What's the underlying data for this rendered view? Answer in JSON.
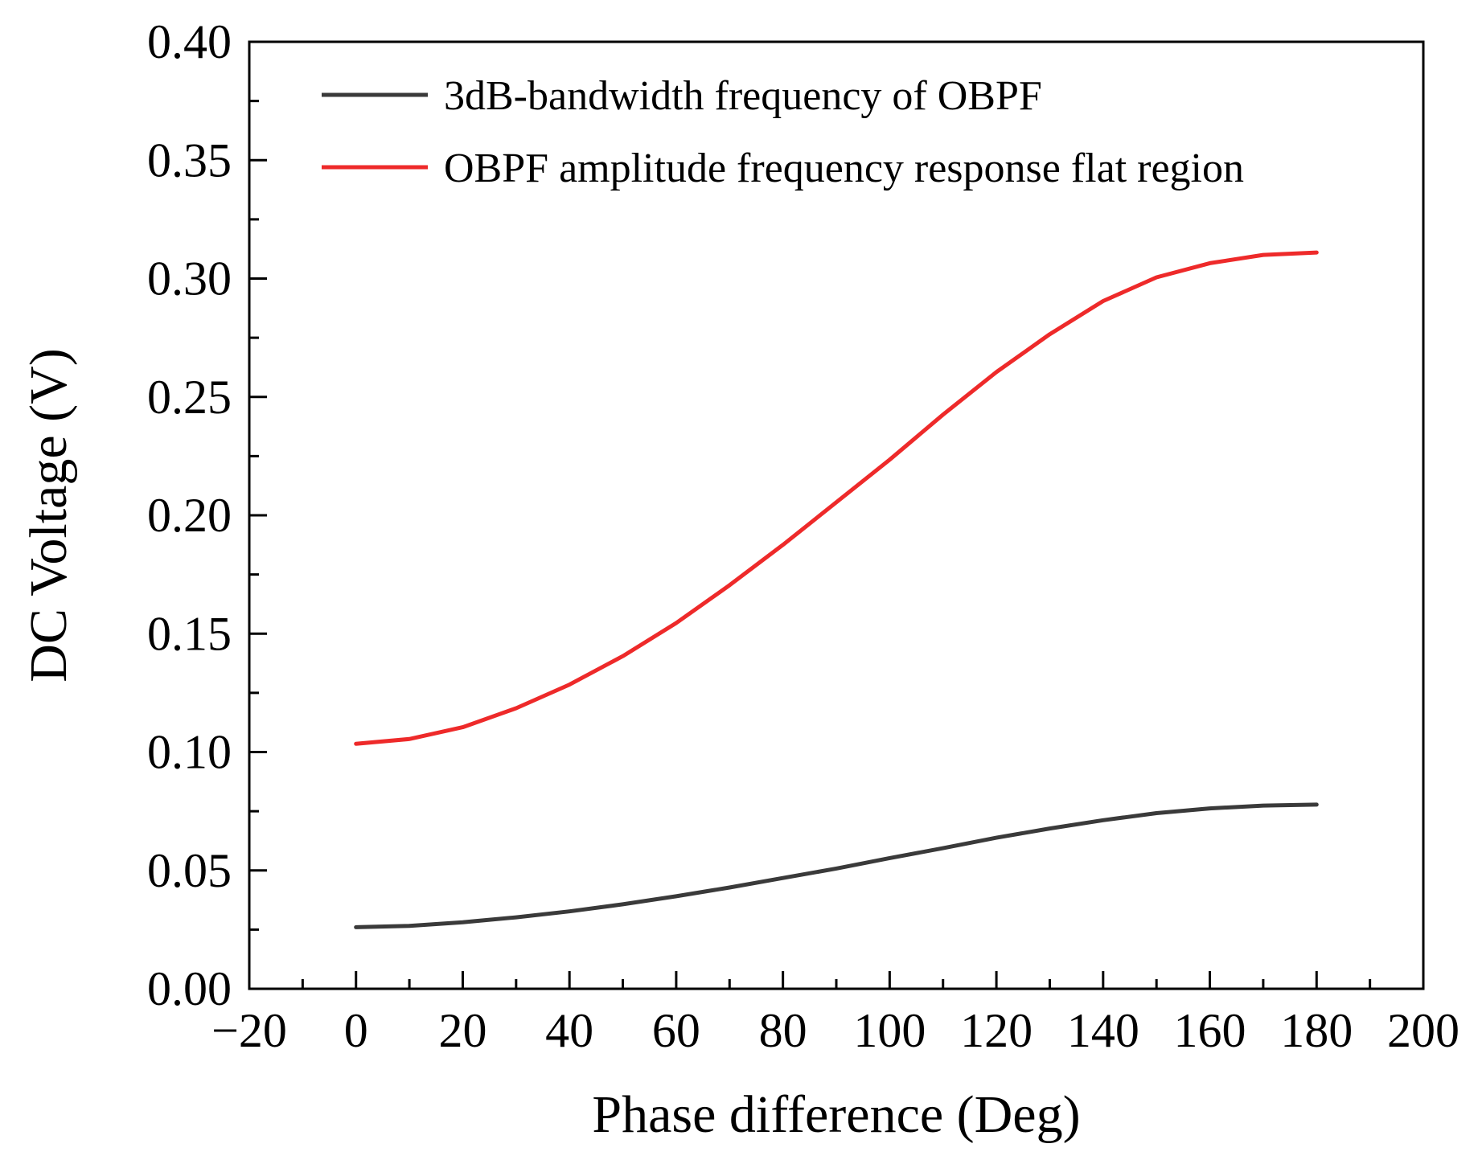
{
  "chart_data": {
    "type": "line",
    "xlabel": "Phase difference (Deg)",
    "ylabel": "DC Voltage (V)",
    "xlim": [
      -20,
      200
    ],
    "ylim": [
      0.0,
      0.4
    ],
    "x_ticks": [
      -20,
      0,
      20,
      40,
      60,
      80,
      100,
      120,
      140,
      160,
      180,
      200
    ],
    "x_tick_labels": [
      "−20",
      "0",
      "20",
      "40",
      "60",
      "80",
      "100",
      "120",
      "140",
      "160",
      "180",
      "200"
    ],
    "y_ticks": [
      0.0,
      0.05,
      0.1,
      0.15,
      0.2,
      0.25,
      0.3,
      0.35,
      0.4
    ],
    "y_tick_labels": [
      "0.00",
      "0.05",
      "0.10",
      "0.15",
      "0.20",
      "0.25",
      "0.30",
      "0.35",
      "0.40"
    ],
    "grid": false,
    "legend": "top-left",
    "x": [
      0,
      10,
      20,
      30,
      40,
      50,
      60,
      70,
      80,
      90,
      100,
      110,
      120,
      130,
      140,
      150,
      160,
      170,
      180
    ],
    "series": [
      {
        "name": "3dB-bandwidth frequency of OBPF",
        "color": "#3a3a3a",
        "values": [
          0.026,
          0.0266,
          0.0281,
          0.0302,
          0.0327,
          0.0357,
          0.0391,
          0.0428,
          0.0468,
          0.0508,
          0.0552,
          0.0594,
          0.0638,
          0.0677,
          0.0712,
          0.0742,
          0.0762,
          0.0774,
          0.0778
        ]
      },
      {
        "name": "OBPF amplitude frequency response flat region",
        "color": "#ee2a2a",
        "values": [
          0.1035,
          0.1055,
          0.1105,
          0.1185,
          0.1285,
          0.1405,
          0.1545,
          0.1705,
          0.1875,
          0.2055,
          0.2235,
          0.2425,
          0.2605,
          0.2765,
          0.2905,
          0.3005,
          0.3065,
          0.31,
          0.311
        ]
      }
    ]
  }
}
